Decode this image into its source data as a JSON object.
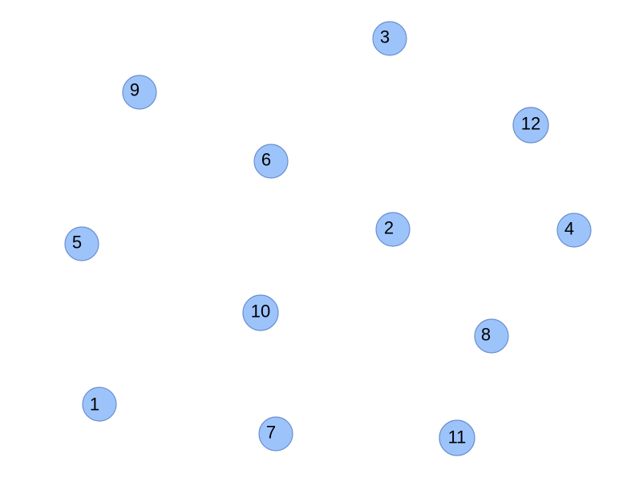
{
  "graph": {
    "node_fill": "#9dc3fb",
    "node_stroke": "#6b8fcf",
    "nodes": [
      {
        "id": "node-1",
        "label": "1"
      },
      {
        "id": "node-2",
        "label": "2"
      },
      {
        "id": "node-3",
        "label": "3"
      },
      {
        "id": "node-4",
        "label": "4"
      },
      {
        "id": "node-5",
        "label": "5"
      },
      {
        "id": "node-6",
        "label": "6"
      },
      {
        "id": "node-7",
        "label": "7"
      },
      {
        "id": "node-8",
        "label": "8"
      },
      {
        "id": "node-9",
        "label": "9"
      },
      {
        "id": "node-10",
        "label": "10"
      },
      {
        "id": "node-11",
        "label": "11"
      },
      {
        "id": "node-12",
        "label": "12"
      }
    ]
  }
}
